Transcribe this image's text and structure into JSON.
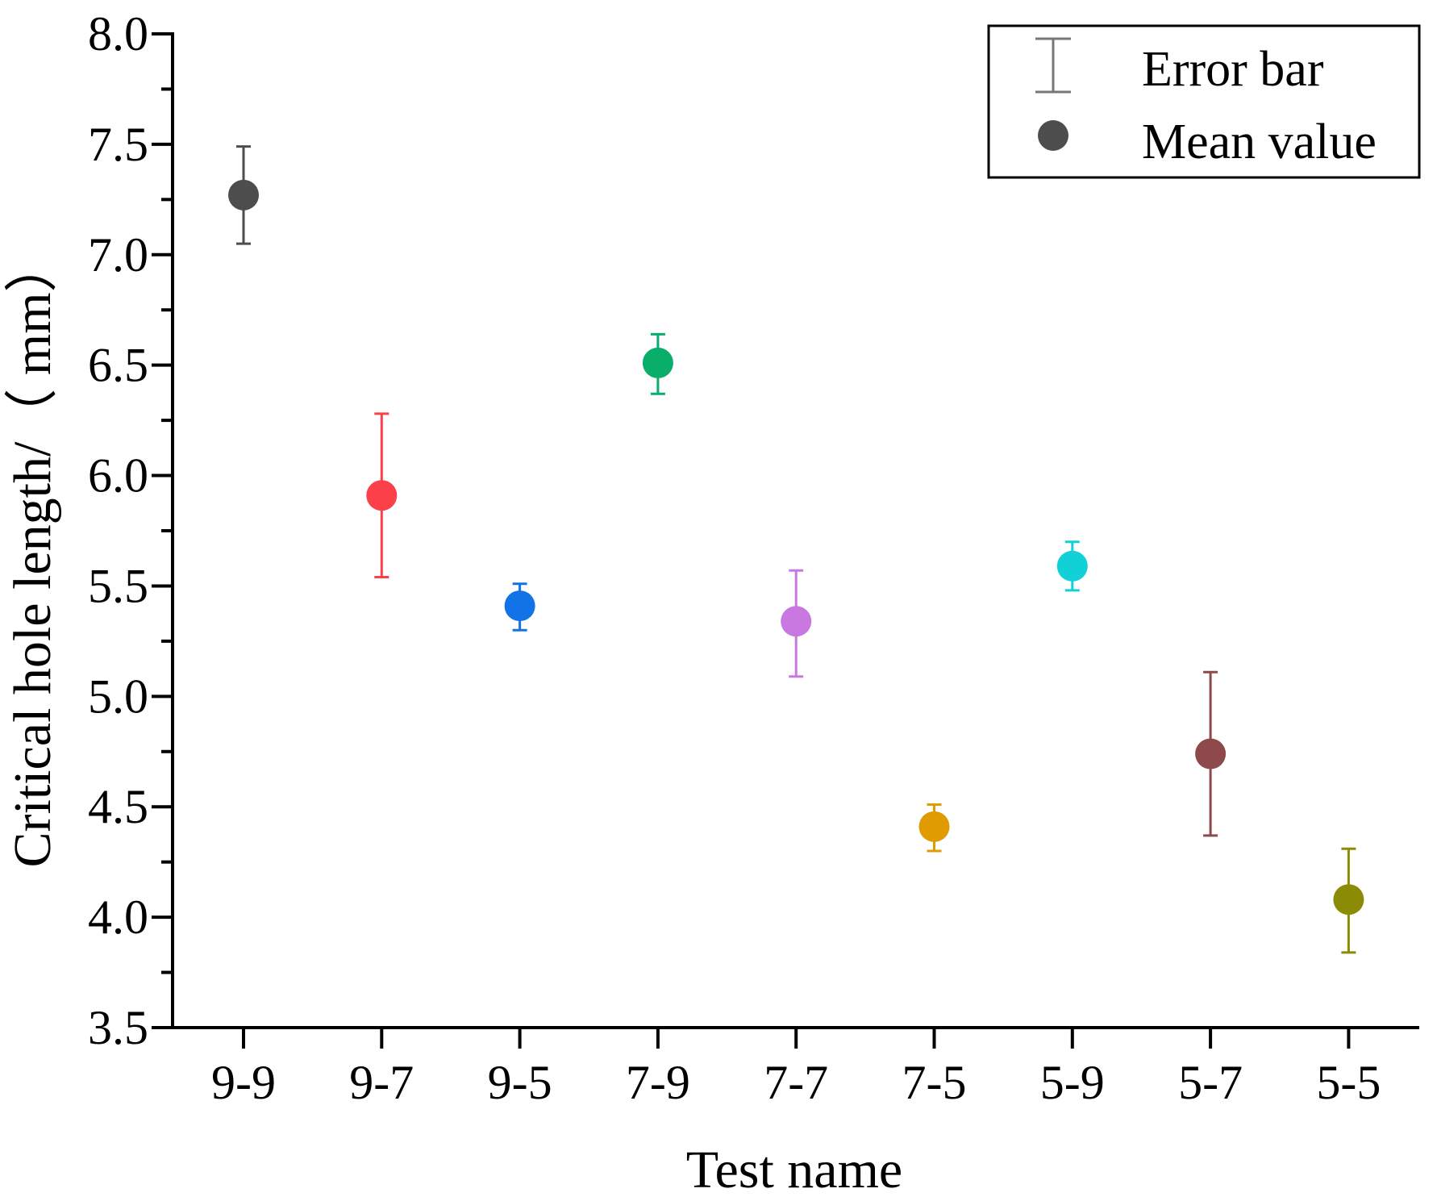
{
  "chart_data": {
    "type": "scatter",
    "xlabel": "Test name",
    "ylabel": "Critical hole length/（ mm）",
    "ylim": [
      3.5,
      8.0
    ],
    "y_ticks": [
      "3.5",
      "4.0",
      "4.5",
      "5.0",
      "5.5",
      "6.0",
      "6.5",
      "7.0",
      "7.5",
      "8.0"
    ],
    "categories": [
      "9-9",
      "9-7",
      "9-5",
      "7-9",
      "7-7",
      "7-5",
      "5-9",
      "5-7",
      "5-5"
    ],
    "points": [
      {
        "category": "9-9",
        "mean": 7.27,
        "lower": 7.05,
        "upper": 7.49,
        "color": "#4d4d4d"
      },
      {
        "category": "9-7",
        "mean": 5.91,
        "lower": 5.54,
        "upper": 6.28,
        "color": "#fb4049"
      },
      {
        "category": "9-5",
        "mean": 5.41,
        "lower": 5.3,
        "upper": 5.51,
        "color": "#1273e6"
      },
      {
        "category": "7-9",
        "mean": 6.51,
        "lower": 6.37,
        "upper": 6.64,
        "color": "#0aae6b"
      },
      {
        "category": "7-7",
        "mean": 5.34,
        "lower": 5.09,
        "upper": 5.57,
        "color": "#c878e0"
      },
      {
        "category": "7-5",
        "mean": 4.41,
        "lower": 4.3,
        "upper": 4.51,
        "color": "#e09b02"
      },
      {
        "category": "5-9",
        "mean": 5.59,
        "lower": 5.48,
        "upper": 5.7,
        "color": "#11d1d6"
      },
      {
        "category": "5-7",
        "mean": 4.74,
        "lower": 4.37,
        "upper": 5.11,
        "color": "#8e4a4a"
      },
      {
        "category": "5-5",
        "mean": 4.08,
        "lower": 3.84,
        "upper": 4.31,
        "color": "#8b8b05"
      }
    ],
    "legend": {
      "position": "top-right",
      "items": [
        {
          "label": "Error bar",
          "symbol": "error-bar",
          "color": "#777777"
        },
        {
          "label": "Mean value",
          "symbol": "circle",
          "color": "#4d4d4d"
        }
      ]
    },
    "grid": false
  }
}
